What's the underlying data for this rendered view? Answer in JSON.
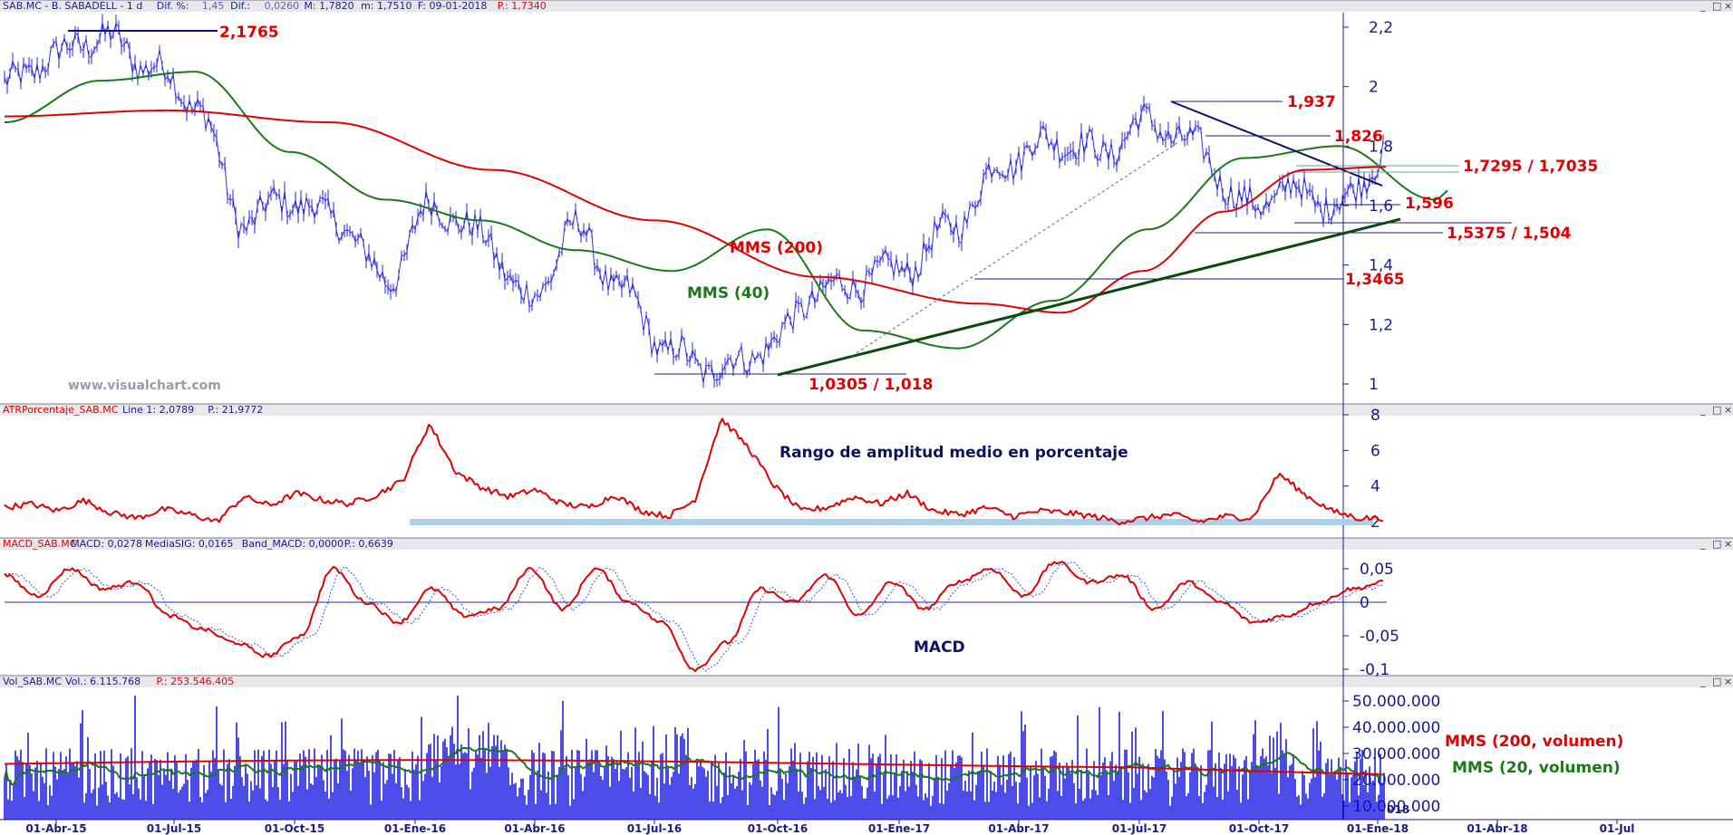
{
  "panels": {
    "price": {
      "header": [
        {
          "text": "SAB.MC - B. SABADELL - 1 d",
          "color": "#1a1a8c"
        },
        {
          "text": "Dif. %:",
          "color": "#1a1a8c"
        },
        {
          "text": "1,45",
          "color": "#6060c0"
        },
        {
          "text": "Dif.:",
          "color": "#1a1a8c"
        },
        {
          "text": "0,0260",
          "color": "#6060c0"
        },
        {
          "text": "M: 1,7820",
          "color": "#1a1a8c"
        },
        {
          "text": "m: 1,7510",
          "color": "#1a1a8c"
        },
        {
          "text": "F: 09-01-2018",
          "color": "#1a1a8c"
        },
        {
          "text": "P.: 1,7340",
          "color": "#e00000"
        }
      ],
      "watermark": "www.visualchart.com"
    },
    "atr": {
      "header": [
        {
          "text": "ATRPorcentaje_SAB.MC",
          "color": "#e00000"
        },
        {
          "text": "Line 1: 2,0789",
          "color": "#1a1a8c"
        },
        {
          "text": "P.: 21,9772",
          "color": "#1a1a8c"
        }
      ],
      "title": "Rango de amplitud medio en porcentaje"
    },
    "macd": {
      "header": [
        {
          "text": "MACD_SAB.MC",
          "color": "#e00000"
        },
        {
          "text": "MACD: 0,0278",
          "color": "#1a1a8c"
        },
        {
          "text": "MediaSIG: 0,0165",
          "color": "#1a1a8c"
        },
        {
          "text": "Band_MACD: 0,0000",
          "color": "#1a1a8c"
        },
        {
          "text": "P.: 0,6639",
          "color": "#1a1a8c"
        }
      ],
      "title": "MACD"
    },
    "volume": {
      "header": [
        {
          "text": "Vol_SAB.MC",
          "color": "#1a1a8c"
        },
        {
          "text": "Vol.: 6.115.768",
          "color": "#1a1a8c"
        },
        {
          "text": "P.: 253.546.405",
          "color": "#e00000"
        }
      ],
      "legend": [
        {
          "text": "MMS (200, volumen)",
          "color": "#e00000"
        },
        {
          "text": "MMS (20, volumen)",
          "color": "#1a7a1a"
        }
      ],
      "partial_label": "018"
    }
  },
  "window_controls": [
    "_",
    "□",
    "×"
  ],
  "chart_data": [
    {
      "type": "line",
      "name": "price",
      "x": [
        "01-Abr-15",
        "01-Jul-15",
        "01-Oct-15",
        "01-Ene-16",
        "01-Abr-16",
        "01-Jul-16",
        "01-Oct-16",
        "01-Ene-17",
        "01-Abr-17",
        "01-Jul-17",
        "01-Oct-17",
        "01-Ene-18",
        "01-Abr-18",
        "01-Jul"
      ],
      "yticks": [
        "1",
        "1,2",
        "1,4",
        "1,6",
        "1,8",
        "2",
        "2,2"
      ],
      "ylim": [
        0.95,
        2.25
      ],
      "series": [
        {
          "values": [
            [
              0,
              2.0
            ],
            [
              0.5,
              2.1
            ],
            [
              1,
              2.17
            ],
            [
              1.5,
              2.08
            ],
            [
              2,
              1.95
            ],
            [
              2.5,
              1.55
            ],
            [
              3,
              1.62
            ],
            [
              3.5,
              1.55
            ],
            [
              4,
              1.35
            ],
            [
              4.5,
              1.6
            ],
            [
              5,
              1.5
            ],
            [
              5.5,
              1.28
            ],
            [
              6,
              1.52
            ],
            [
              6.5,
              1.3
            ],
            [
              7,
              1.1
            ],
            [
              7.5,
              1.05
            ],
            [
              8,
              1.12
            ],
            [
              8.5,
              1.3
            ],
            [
              9,
              1.35
            ],
            [
              9.5,
              1.4
            ],
            [
              10,
              1.55
            ],
            [
              10.5,
              1.75
            ],
            [
              11,
              1.82
            ],
            [
              11.5,
              1.78
            ],
            [
              12,
              1.88
            ],
            [
              12.5,
              1.8
            ],
            [
              13,
              1.6
            ],
            [
              13.5,
              1.65
            ],
            [
              14,
              1.6
            ],
            [
              14.5,
              1.78
            ]
          ]
        },
        {
          "name": "MMS (40)",
          "color": "#1a7a1a",
          "values": [
            [
              0,
              1.88
            ],
            [
              1,
              2.02
            ],
            [
              2,
              2.05
            ],
            [
              3,
              1.78
            ],
            [
              4,
              1.62
            ],
            [
              5,
              1.55
            ],
            [
              6,
              1.45
            ],
            [
              7,
              1.38
            ],
            [
              8,
              1.52
            ],
            [
              9,
              1.18
            ],
            [
              10,
              1.12
            ],
            [
              11,
              1.28
            ],
            [
              12,
              1.52
            ],
            [
              13,
              1.76
            ],
            [
              14,
              1.8
            ],
            [
              15,
              1.62
            ],
            [
              15.2,
              1.66
            ]
          ]
        },
        {
          "name": "MMS (200)",
          "color": "#e00000",
          "values": [
            [
              0,
              1.9
            ],
            [
              2,
              1.92
            ],
            [
              4,
              1.88
            ],
            [
              6,
              1.72
            ],
            [
              8,
              1.55
            ],
            [
              10,
              1.36
            ],
            [
              12,
              1.27
            ],
            [
              13,
              1.24
            ],
            [
              14,
              1.38
            ],
            [
              15,
              1.58
            ],
            [
              16,
              1.72
            ],
            [
              17,
              1.73
            ]
          ]
        }
      ],
      "annotations": [
        "2,1765",
        "1,937",
        "1,826",
        "1,7295 / 1,7035",
        "1,596",
        "1,5375 / 1,504",
        "1,3465",
        "1,0305 / 1,018",
        "MMS (200)",
        "MMS (40)"
      ]
    },
    {
      "type": "line",
      "name": "atr",
      "yticks": [
        "2",
        "4",
        "6",
        "8"
      ],
      "ylim": [
        1,
        8
      ],
      "series": [
        {
          "color": "#e00000",
          "values": [
            2.8,
            3.0,
            2.6,
            3.2,
            2.5,
            2.2,
            2.7,
            2.4,
            2.0,
            3.4,
            2.9,
            3.6,
            3.2,
            3.0,
            3.5,
            4.3,
            7.5,
            4.8,
            3.9,
            3.4,
            3.8,
            3.0,
            2.8,
            3.5,
            2.6,
            2.3,
            3.2,
            7.8,
            6.2,
            4.0,
            2.6,
            2.8,
            3.4,
            3.0,
            3.6,
            2.6,
            2.4,
            2.8,
            2.3,
            2.6,
            2.5,
            2.3,
            2.0,
            2.2,
            2.4,
            2.0,
            2.3,
            2.2,
            4.7,
            3.5,
            2.6,
            2.2,
            2.2
          ]
        }
      ]
    },
    {
      "type": "line",
      "name": "macd",
      "yticks": [
        "-0,1",
        "-0,05",
        "0",
        "0,05"
      ],
      "ylim": [
        -0.11,
        0.07
      ],
      "series": [
        {
          "color": "#e00000",
          "values": [
            0.04,
            0.01,
            0.05,
            0.02,
            0.03,
            -0.02,
            -0.04,
            -0.06,
            -0.08,
            -0.05,
            0.05,
            0.0,
            -0.03,
            0.02,
            -0.02,
            -0.01,
            0.05,
            -0.01,
            0.05,
            0.0,
            -0.03,
            -0.1,
            -0.06,
            0.02,
            0.0,
            0.04,
            -0.02,
            0.03,
            -0.01,
            0.03,
            0.05,
            0.01,
            0.06,
            0.03,
            0.04,
            -0.01,
            0.03,
            0.0,
            -0.03,
            -0.02,
            0.0,
            0.02,
            0.03
          ]
        }
      ]
    },
    {
      "type": "bar",
      "name": "volume",
      "yticks": [
        "10.000.000",
        "20.000.000",
        "30.000.000",
        "40.000.000",
        "50.000.000"
      ],
      "ylim": [
        5000000,
        55000000
      ],
      "series": [
        {
          "name": "MMS (200, volumen)",
          "color": "#e00000"
        },
        {
          "name": "MMS (20, volumen)",
          "color": "#1a7a1a"
        }
      ]
    }
  ]
}
